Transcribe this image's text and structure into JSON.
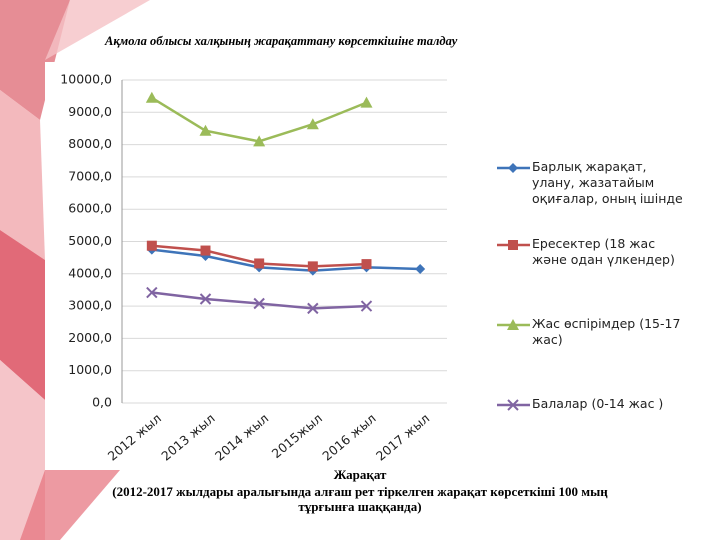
{
  "chart_data": {
    "type": "line",
    "title": "Ақмола облысы халқының жарақаттану көрсеткішіне талдау",
    "caption": [
      "Жарақат",
      "(2012-2017 жылдары аралығында алғаш рет тіркелген жарақат көрсеткіші 100 мың",
      "тұрғынға шаққанда)"
    ],
    "categories": [
      "2012 жыл",
      "2013 жыл",
      "2014 жыл",
      "2015жыл",
      "2016 жыл",
      "2017 жыл"
    ],
    "series": [
      {
        "name": "Барлық жарақат, улану, жазатайым оқиғалар, оның ішінде",
        "color": "#3e74b9",
        "values": [
          4750,
          4550,
          4200,
          4100,
          4200,
          4150
        ]
      },
      {
        "name": "Ересектер (18 жас және одан үлкендер)",
        "color": "#c0504d",
        "values": [
          4870,
          4720,
          4320,
          4230,
          4300,
          null
        ]
      },
      {
        "name": "Жас өспірімдер (15-17 жас)",
        "color": "#9bbb59",
        "values": [
          9450,
          8430,
          8100,
          8630,
          9300,
          null
        ]
      },
      {
        "name": "Балалар  (0-14 жас )",
        "color": "#8064a2",
        "values": [
          3420,
          3220,
          3080,
          2930,
          3000,
          null
        ]
      }
    ],
    "ylim": [
      0,
      10000
    ],
    "yticks": [
      {
        "value": 0,
        "label": "0,0"
      },
      {
        "value": 1000,
        "label": "1000,0"
      },
      {
        "value": 2000,
        "label": "2000,0"
      },
      {
        "value": 3000,
        "label": "3000,0"
      },
      {
        "value": 4000,
        "label": "4000,0"
      },
      {
        "value": 5000,
        "label": "5000,0"
      },
      {
        "value": 6000,
        "label": "6000,0"
      },
      {
        "value": 7000,
        "label": "7000,0"
      },
      {
        "value": 8000,
        "label": "8000,0"
      },
      {
        "value": 9000,
        "label": "9000,0"
      },
      {
        "value": 10000,
        "label": "10000,0"
      }
    ],
    "grid": true,
    "legend": "right"
  }
}
